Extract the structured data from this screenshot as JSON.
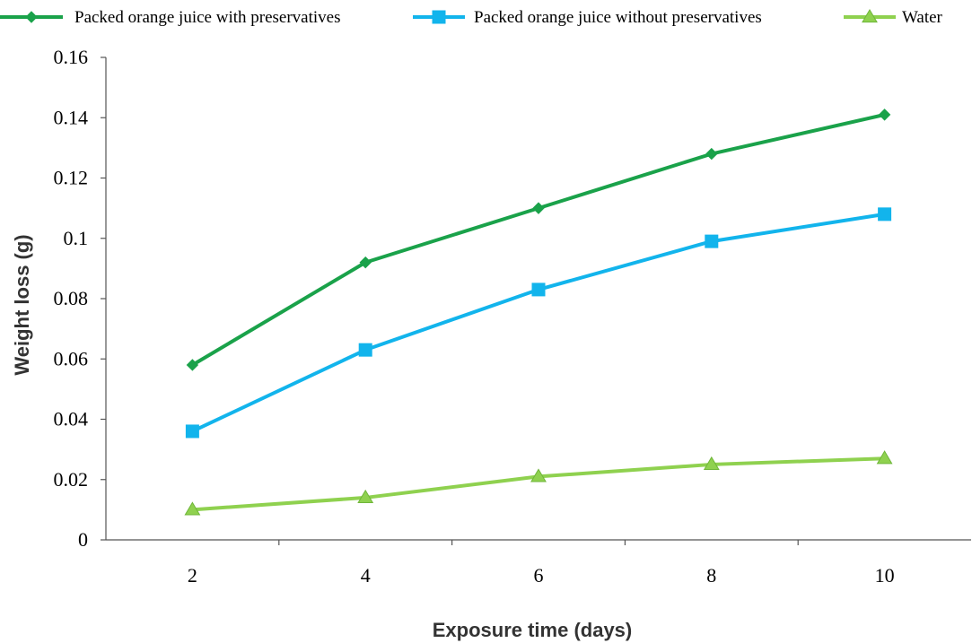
{
  "chart_data": {
    "type": "line",
    "title": "",
    "xlabel": "Exposure time (days)",
    "ylabel": "Weight loss (g)",
    "x": [
      2,
      4,
      6,
      8,
      10
    ],
    "x_tick_labels": [
      "2",
      "4",
      "6",
      "8",
      "10"
    ],
    "ylim": [
      0,
      0.16
    ],
    "y_ticks": [
      0,
      0.02,
      0.04,
      0.06,
      0.08,
      0.1,
      0.12,
      0.14,
      0.16
    ],
    "y_tick_labels": [
      "0",
      "0.02",
      "0.04",
      "0.06",
      "0.08",
      "0.1",
      "0.12",
      "0.14",
      "0.16"
    ],
    "grid": false,
    "legend_position": "top",
    "series": [
      {
        "name": "Packed orange juice with preservatives",
        "marker": "diamond",
        "color": "#1aa24a",
        "values": [
          0.058,
          0.092,
          0.11,
          0.128,
          0.141
        ]
      },
      {
        "name": "Packed orange juice without preservatives",
        "marker": "square",
        "color": "#12b4ec",
        "values": [
          0.036,
          0.063,
          0.083,
          0.099,
          0.108
        ]
      },
      {
        "name": "Water",
        "marker": "triangle",
        "color": "#8fd14f",
        "values": [
          0.01,
          0.014,
          0.021,
          0.025,
          0.027
        ]
      }
    ]
  }
}
